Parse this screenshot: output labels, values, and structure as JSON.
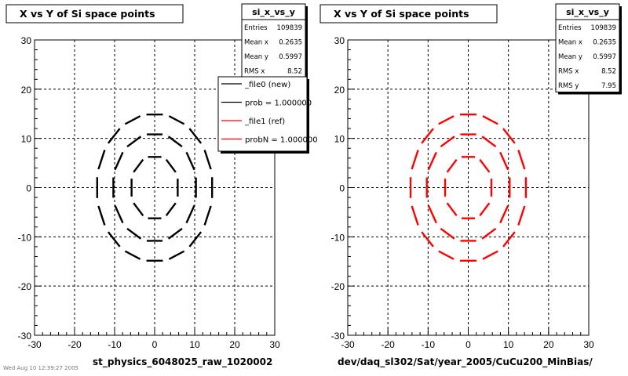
{
  "canvas": {
    "stamp": "Wed Aug 10 12:39:27 2005"
  },
  "panels": [
    {
      "title": "X vs Y of Si space points",
      "caption": "st_physics_6048025_raw_1020002",
      "color": "#000000",
      "stats": {
        "name": "si_x_vs_y",
        "rows": [
          {
            "label": "Entries",
            "value": "109839"
          },
          {
            "label": "Mean x",
            "value": "0.2635"
          },
          {
            "label": "Mean y",
            "value": "0.5997"
          },
          {
            "label": "RMS x",
            "value": "8.52"
          }
        ]
      },
      "legend": [
        {
          "label": "_file0 (new)",
          "color": "#000000"
        },
        {
          "label": "prob = 1.000000",
          "color": "#000000"
        },
        {
          "label": "_file1 (ref)",
          "color": "#ff0000"
        },
        {
          "label": "probN = 1.000000",
          "color": "#ff0000"
        }
      ]
    },
    {
      "title": "X vs Y of Si space points",
      "caption": "dev/daq_sl302/Sat/year_2005/CuCu200_MinBias/",
      "color": "#ff0000",
      "stats": {
        "name": "si_x_vs_y",
        "rows": [
          {
            "label": "Entries",
            "value": "109839"
          },
          {
            "label": "Mean x",
            "value": "0.2635"
          },
          {
            "label": "Mean y",
            "value": "0.5997"
          },
          {
            "label": "RMS x",
            "value": "8.52"
          },
          {
            "label": "RMS y",
            "value": "7.95"
          }
        ]
      },
      "legend": []
    }
  ],
  "chart_data": [
    {
      "type": "scatter",
      "title": "X vs Y of Si space points",
      "xlabel": "st_physics_6048025_raw_1020002",
      "ylabel": "",
      "xlim": [
        -30,
        30
      ],
      "ylim": [
        -30,
        30
      ],
      "xticks": [
        -30,
        -20,
        -10,
        0,
        10,
        20,
        30
      ],
      "yticks": [
        -30,
        -20,
        -10,
        0,
        10,
        20,
        30
      ],
      "grid": true,
      "legend_position": "top-right",
      "series": [
        {
          "name": "_file0 (new)",
          "color": "#000000",
          "rings": [
            {
              "rx": 6.0,
              "ry": 6.5,
              "segments": 8
            },
            {
              "rx": 10.5,
              "ry": 11.0,
              "segments": 12
            },
            {
              "rx": 14.5,
              "ry": 15.0,
              "segments": 16
            }
          ]
        },
        {
          "name": "_file1 (ref)",
          "color": "#ff0000",
          "rings": [
            {
              "rx": 6.0,
              "ry": 6.5,
              "segments": 8
            },
            {
              "rx": 10.5,
              "ry": 11.0,
              "segments": 12
            },
            {
              "rx": 14.5,
              "ry": 15.0,
              "segments": 16
            }
          ]
        }
      ]
    },
    {
      "type": "scatter",
      "title": "X vs Y of Si space points",
      "xlabel": "dev/daq_sl302/Sat/year_2005/CuCu200_MinBias/",
      "ylabel": "",
      "xlim": [
        -30,
        30
      ],
      "ylim": [
        -30,
        30
      ],
      "xticks": [
        -30,
        -20,
        -10,
        0,
        10,
        20,
        30
      ],
      "yticks": [
        -30,
        -20,
        -10,
        0,
        10,
        20,
        30
      ],
      "grid": true,
      "series": [
        {
          "color": "#ff0000",
          "rings": [
            {
              "rx": 6.0,
              "ry": 6.5,
              "segments": 8
            },
            {
              "rx": 10.5,
              "ry": 11.0,
              "segments": 12
            },
            {
              "rx": 14.5,
              "ry": 15.0,
              "segments": 16
            }
          ]
        }
      ]
    }
  ]
}
